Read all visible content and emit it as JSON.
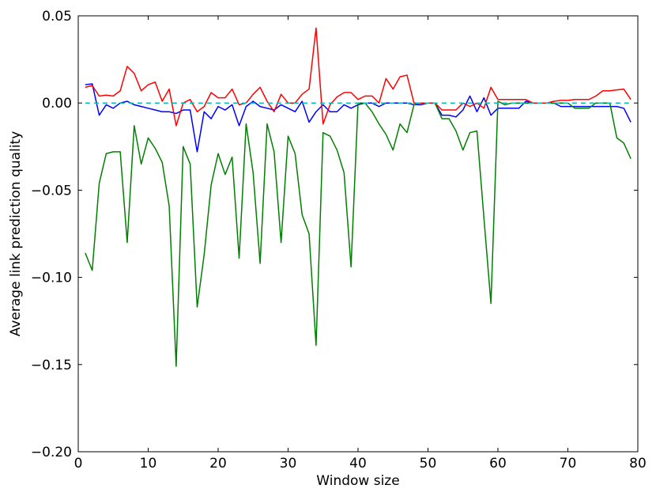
{
  "chart_data": {
    "type": "line",
    "xlabel": "Window size",
    "ylabel": "Average link prediction quality",
    "xlim": [
      0,
      80
    ],
    "ylim": [
      -0.2,
      0.05
    ],
    "xticks": [
      0,
      10,
      20,
      30,
      40,
      50,
      60,
      70,
      80
    ],
    "xtick_labels": [
      "0",
      "10",
      "20",
      "30",
      "40",
      "50",
      "60",
      "70",
      "80"
    ],
    "yticks": [
      -0.2,
      -0.15,
      -0.1,
      -0.05,
      0.0,
      0.05
    ],
    "ytick_labels": [
      "−0.20",
      "−0.15",
      "−0.10",
      "−0.05",
      "0.00",
      "0.05"
    ],
    "grid": false,
    "x": [
      1,
      2,
      3,
      4,
      5,
      6,
      7,
      8,
      9,
      10,
      11,
      12,
      13,
      14,
      15,
      16,
      17,
      18,
      19,
      20,
      21,
      22,
      23,
      24,
      25,
      26,
      27,
      28,
      29,
      30,
      31,
      32,
      33,
      34,
      35,
      36,
      37,
      38,
      39,
      40,
      41,
      42,
      43,
      44,
      45,
      46,
      47,
      48,
      49,
      50,
      51,
      52,
      53,
      54,
      55,
      56,
      57,
      58,
      59,
      60,
      61,
      62,
      63,
      64,
      65,
      66,
      67,
      68,
      69,
      70,
      71,
      72,
      73,
      74,
      75,
      76,
      77,
      78,
      79
    ],
    "series": [
      {
        "color": "#0000ff",
        "values": [
          0.0105,
          0.011,
          -0.007,
          -0.001,
          -0.003,
          0.0,
          0.001,
          -0.001,
          -0.002,
          -0.003,
          -0.004,
          -0.005,
          -0.005,
          -0.006,
          -0.004,
          -0.004,
          -0.028,
          -0.005,
          -0.009,
          -0.002,
          -0.004,
          -0.001,
          -0.013,
          -0.002,
          0.001,
          -0.002,
          -0.003,
          -0.004,
          -0.001,
          -0.003,
          -0.005,
          0.001,
          -0.011,
          -0.005,
          -0.001,
          -0.005,
          -0.005,
          -0.001,
          -0.003,
          -0.001,
          0.0,
          0.0,
          -0.002,
          0.0,
          0.0,
          0.0,
          0.0,
          -0.001,
          -0.001,
          0.0,
          0.0,
          -0.007,
          -0.007,
          -0.008,
          -0.004,
          0.004,
          -0.005,
          0.003,
          -0.007,
          -0.003,
          -0.003,
          -0.003,
          -0.003,
          0.001,
          0.0,
          0.0,
          0.0,
          0.0,
          -0.002,
          -0.002,
          -0.002,
          -0.002,
          -0.002,
          -0.002,
          -0.002,
          -0.002,
          -0.002,
          -0.003,
          -0.011
        ]
      },
      {
        "color": "#008000",
        "values": [
          -0.086,
          -0.096,
          -0.046,
          -0.029,
          -0.028,
          -0.028,
          -0.08,
          -0.013,
          -0.035,
          -0.02,
          -0.026,
          -0.034,
          -0.059,
          -0.151,
          -0.025,
          -0.035,
          -0.117,
          -0.087,
          -0.047,
          -0.029,
          -0.041,
          -0.031,
          -0.089,
          -0.012,
          -0.04,
          -0.092,
          -0.012,
          -0.028,
          -0.08,
          -0.019,
          -0.029,
          -0.064,
          -0.075,
          -0.139,
          -0.017,
          -0.019,
          -0.027,
          -0.04,
          -0.094,
          0.0,
          0.0,
          -0.005,
          -0.012,
          -0.018,
          -0.027,
          -0.012,
          -0.017,
          -0.001,
          0.0,
          0.0,
          0.0,
          -0.009,
          -0.009,
          -0.016,
          -0.027,
          -0.017,
          -0.016,
          -0.066,
          -0.115,
          0.001,
          -0.001,
          0.0,
          0.0,
          0.0,
          0.0,
          0.0,
          0.0,
          0.0,
          0.0,
          0.0,
          -0.003,
          -0.003,
          -0.003,
          0.0,
          0.0,
          0.0,
          -0.02,
          -0.023,
          -0.032
        ]
      },
      {
        "color": "#ff0000",
        "values": [
          0.009,
          0.01,
          0.004,
          0.0045,
          0.004,
          0.007,
          0.021,
          0.017,
          0.007,
          0.0105,
          0.012,
          0.001,
          0.008,
          -0.013,
          0.0,
          0.002,
          -0.005,
          -0.002,
          0.006,
          0.003,
          0.003,
          0.008,
          -0.001,
          0.0,
          0.005,
          0.009,
          0.001,
          -0.005,
          0.005,
          0.0,
          0.0,
          0.005,
          0.008,
          0.043,
          -0.012,
          -0.001,
          0.0035,
          0.006,
          0.006,
          0.002,
          0.004,
          0.004,
          0.0,
          0.014,
          0.008,
          0.015,
          0.016,
          0.0,
          0.0,
          0.0,
          0.0,
          -0.004,
          -0.004,
          -0.004,
          0.0,
          -0.002,
          0.0,
          -0.003,
          0.009,
          0.002,
          0.002,
          0.002,
          0.002,
          0.002,
          0.0,
          0.0,
          0.0,
          0.001,
          0.0015,
          0.0015,
          0.002,
          0.002,
          0.002,
          0.004,
          0.007,
          0.007,
          0.0075,
          0.008,
          0.002
        ]
      },
      {
        "color": "#00bfbf",
        "dashed": true,
        "values": [
          0,
          0,
          0,
          0,
          0,
          0,
          0,
          0,
          0,
          0,
          0,
          0,
          0,
          0,
          0,
          0,
          0,
          0,
          0,
          0,
          0,
          0,
          0,
          0,
          0,
          0,
          0,
          0,
          0,
          0,
          0,
          0,
          0,
          0,
          0,
          0,
          0,
          0,
          0,
          0,
          0,
          0,
          0,
          0,
          0,
          0,
          0,
          0,
          0,
          0,
          0,
          0,
          0,
          0,
          0,
          0,
          0,
          0,
          0,
          0,
          0,
          0,
          0,
          0,
          0,
          0,
          0,
          0,
          0,
          0,
          0,
          0,
          0,
          0,
          0,
          0,
          0,
          0,
          0
        ]
      }
    ]
  }
}
